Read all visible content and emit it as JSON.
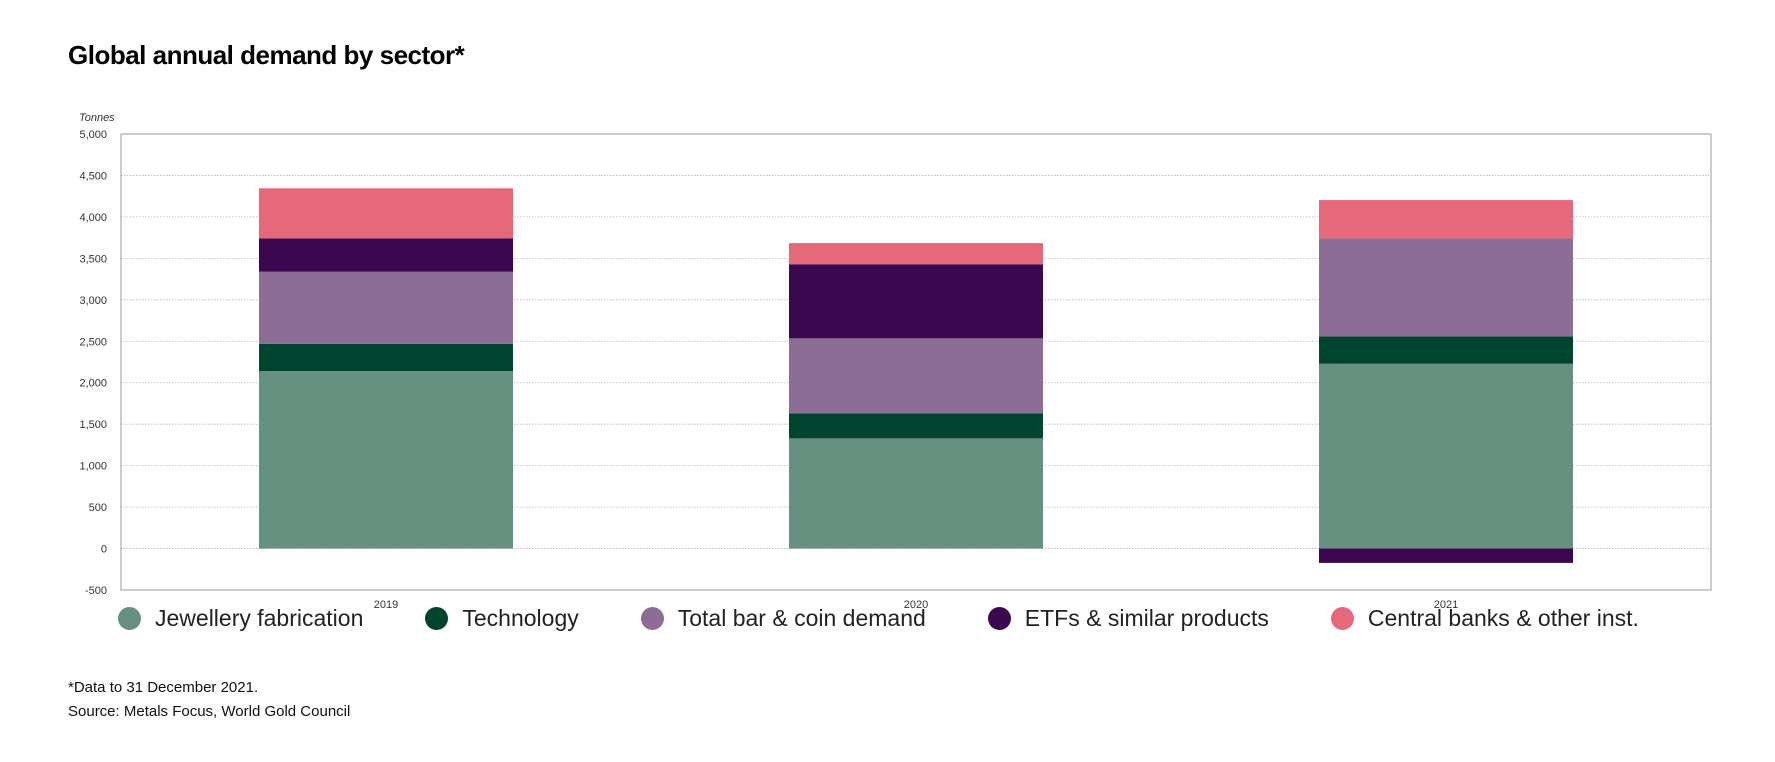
{
  "header": {
    "title": "Global annual demand by sector*",
    "unit": "Tonnes"
  },
  "footer": {
    "note": "*Data to 31 December 2021.",
    "source": "Source: Metals Focus, World Gold Council"
  },
  "chart_data": {
    "type": "bar",
    "stacked": true,
    "categories": [
      "2019",
      "2020",
      "2021"
    ],
    "series": [
      {
        "name": "Jewellery fabrication",
        "color": "#66907f",
        "values": [
          2141,
          1329,
          2229
        ]
      },
      {
        "name": "Technology",
        "color": "#00442f",
        "values": [
          327,
          303,
          330
        ]
      },
      {
        "name": "Total bar & coin demand",
        "color": "#8b6d95",
        "values": [
          871,
          903,
          1181
        ]
      },
      {
        "name": "ETFs & similar products",
        "color": "#3b0850",
        "values": [
          401,
          894,
          -173
        ]
      },
      {
        "name": "Central banks & other inst.",
        "color": "#e5697a",
        "values": [
          605,
          255,
          463
        ]
      }
    ],
    "ylim": [
      -500,
      5000
    ],
    "yticks": [
      -500,
      0,
      500,
      1000,
      1500,
      2000,
      2500,
      3000,
      3500,
      4000,
      4500,
      5000
    ],
    "ytick_labels": [
      "-500",
      "0",
      "500",
      "1,000",
      "1,500",
      "2,000",
      "2,500",
      "3,000",
      "3,500",
      "4,000",
      "4,500",
      "5,000"
    ],
    "ylabel": "Tonnes",
    "grid": true,
    "legend_position": "bottom"
  }
}
